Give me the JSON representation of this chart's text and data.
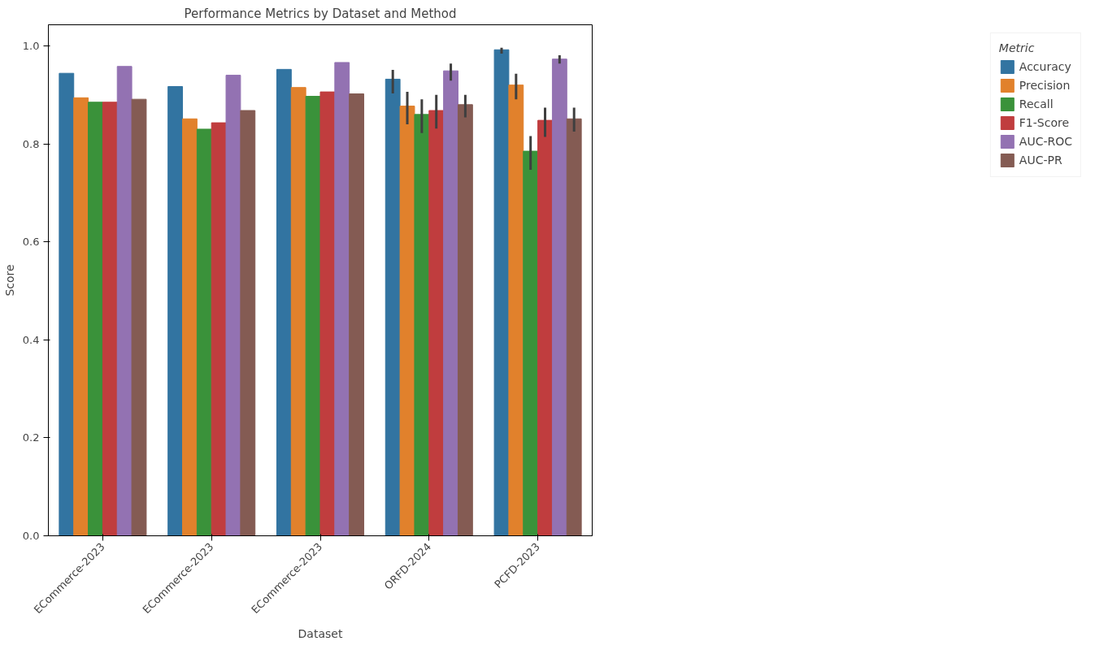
{
  "chart_data": {
    "type": "bar",
    "title": "Performance Metrics by Dataset and Method",
    "xlabel": "Dataset",
    "ylabel": "Score",
    "legend_title": "Metric",
    "categories": [
      "ECommerce-2023",
      "ECommerce-2023",
      "ECommerce-2023",
      "ORFD-2024",
      "PCFD-2023"
    ],
    "series": [
      {
        "name": "Accuracy",
        "color": "#3274a1",
        "values": [
          0.944,
          0.917,
          0.952,
          0.932,
          0.992
        ],
        "errors": [
          null,
          null,
          null,
          [
            0.903,
            0.951
          ],
          [
            0.984,
            0.996
          ]
        ]
      },
      {
        "name": "Precision",
        "color": "#e1812c",
        "values": [
          0.894,
          0.851,
          0.915,
          0.877,
          0.92
        ],
        "errors": [
          null,
          null,
          null,
          [
            0.84,
            0.906
          ],
          [
            0.891,
            0.943
          ]
        ]
      },
      {
        "name": "Recall",
        "color": "#3a923a",
        "values": [
          0.885,
          0.83,
          0.897,
          0.86,
          0.785
        ],
        "errors": [
          null,
          null,
          null,
          [
            0.822,
            0.891
          ],
          [
            0.747,
            0.816
          ]
        ]
      },
      {
        "name": "F1-Score",
        "color": "#c03d3e",
        "values": [
          0.885,
          0.843,
          0.906,
          0.868,
          0.848
        ],
        "errors": [
          null,
          null,
          null,
          [
            0.831,
            0.9
          ],
          [
            0.814,
            0.874
          ]
        ]
      },
      {
        "name": "AUC-ROC",
        "color": "#9372b2",
        "values": [
          0.958,
          0.94,
          0.966,
          0.949,
          0.973
        ],
        "errors": [
          null,
          null,
          null,
          [
            0.929,
            0.964
          ],
          [
            0.964,
            0.981
          ]
        ]
      },
      {
        "name": "AUC-PR",
        "color": "#845b53",
        "values": [
          0.891,
          0.868,
          0.902,
          0.88,
          0.851
        ],
        "errors": [
          null,
          null,
          null,
          [
            0.854,
            0.9
          ],
          [
            0.825,
            0.874
          ]
        ]
      }
    ],
    "ylim": [
      0,
      1.043
    ],
    "yticks": [
      {
        "value": 0,
        "label": "0.0"
      },
      0.2,
      0.4,
      0.6,
      0.8,
      {
        "value": 1,
        "label": "1.0"
      }
    ],
    "grid": false,
    "legend": "right"
  }
}
